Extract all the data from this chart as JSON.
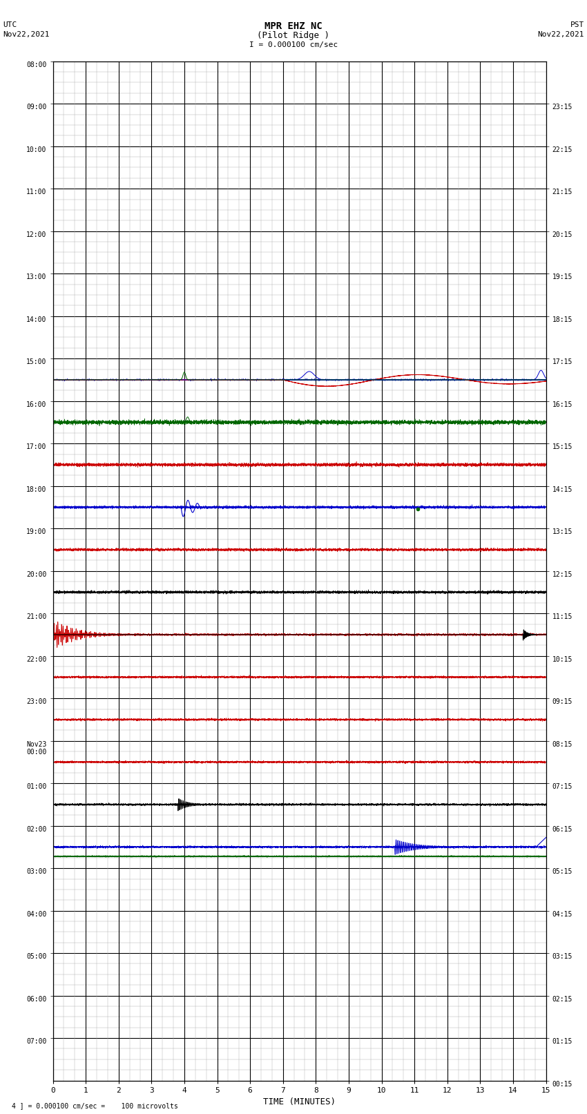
{
  "title_line1": "MPR EHZ NC",
  "title_line2": "(Pilot Ridge )",
  "title_scale": "I = 0.000100 cm/sec",
  "left_header_line1": "UTC",
  "left_header_line2": "Nov22,2021",
  "right_header_line1": "PST",
  "right_header_line2": "Nov22,2021",
  "footer": "4 ] = 0.000100 cm/sec =    100 microvolts",
  "xlabel": "TIME (MINUTES)",
  "xlim": [
    0,
    15
  ],
  "xticks": [
    0,
    1,
    2,
    3,
    4,
    5,
    6,
    7,
    8,
    9,
    10,
    11,
    12,
    13,
    14,
    15
  ],
  "utc_labels": [
    "08:00",
    "09:00",
    "10:00",
    "11:00",
    "12:00",
    "13:00",
    "14:00",
    "15:00",
    "16:00",
    "17:00",
    "18:00",
    "19:00",
    "20:00",
    "21:00",
    "22:00",
    "23:00",
    "Nov23\n00:00",
    "01:00",
    "02:00",
    "03:00",
    "04:00",
    "05:00",
    "06:00",
    "07:00"
  ],
  "pst_labels": [
    "00:15",
    "01:15",
    "02:15",
    "03:15",
    "04:15",
    "05:15",
    "06:15",
    "07:15",
    "08:15",
    "09:15",
    "10:15",
    "11:15",
    "12:15",
    "13:15",
    "14:15",
    "15:15",
    "16:15",
    "17:15",
    "18:15",
    "19:15",
    "20:15",
    "21:15",
    "22:15",
    "23:15"
  ],
  "n_rows": 24,
  "bg_color": "#ffffff",
  "minor_grid_color": "#aaaaaa",
  "major_grid_color": "#000000",
  "seed": 42
}
